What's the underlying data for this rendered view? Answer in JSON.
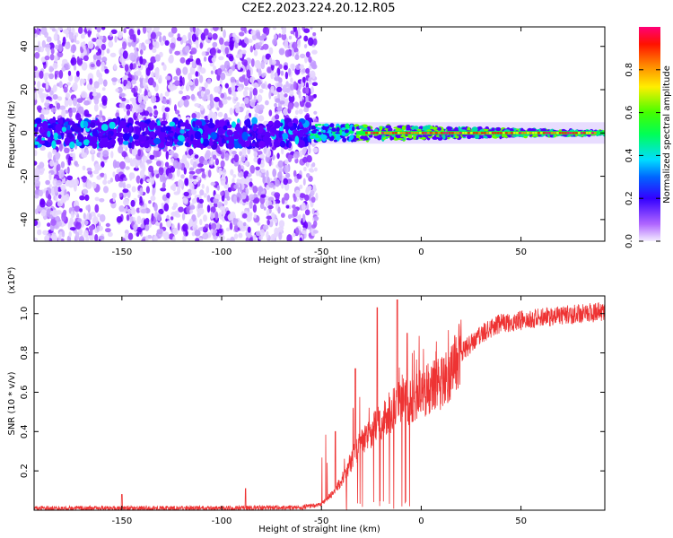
{
  "title": "C2E2.2023.224.20.12.R05",
  "chart_data": [
    {
      "type": "heatmap",
      "xlabel": "Height of straight line (km)",
      "ylabel": "Frequency (Hz)",
      "xlim": [
        -194,
        92
      ],
      "ylim": [
        -50,
        49
      ],
      "xticks": [
        -150,
        -100,
        -50,
        0,
        50
      ],
      "yticks": [
        -40,
        -20,
        0,
        20,
        40
      ],
      "colorbar": {
        "label": "Normalized spectral amplitude",
        "range": [
          0,
          1
        ],
        "ticks": [
          0.0,
          0.2,
          0.4,
          0.6,
          0.8
        ],
        "colormap": [
          "#f0e6ff",
          "#9b30ff",
          "#3300ff",
          "#00ccff",
          "#00ff66",
          "#66ff00",
          "#ffee00",
          "#ff6600",
          "#ff0000",
          "#ff0077"
        ]
      },
      "features": {
        "noise_region_x": [
          -194,
          -55
        ],
        "narrowband_center_hz": 0,
        "narrowband_band_x": [
          -55,
          92
        ]
      }
    },
    {
      "type": "line",
      "xlabel": "Height of straight line (km)",
      "ylabel": "SNR (10 * v/v)",
      "scale_note": "(x10⁴)",
      "xlim": [
        -194,
        92
      ],
      "ylim": [
        0,
        1.09
      ],
      "xticks": [
        -150,
        -100,
        -50,
        0,
        50
      ],
      "yticks": [
        0.2,
        0.4,
        0.6,
        0.8,
        1.0
      ],
      "color": "#ee3333",
      "envelope_x": [
        -194,
        -100,
        -60,
        -50,
        -45,
        -40,
        -35,
        -30,
        -25,
        -20,
        -15,
        -10,
        -5,
        0,
        10,
        20,
        30,
        40,
        60,
        90
      ],
      "envelope_y": [
        0.01,
        0.01,
        0.015,
        0.03,
        0.08,
        0.15,
        0.25,
        0.35,
        0.4,
        0.45,
        0.5,
        0.55,
        0.55,
        0.6,
        0.65,
        0.8,
        0.9,
        0.95,
        0.98,
        1.01
      ],
      "spikes": [
        {
          "x": -150,
          "y": 0.08
        },
        {
          "x": -88,
          "y": 0.11
        },
        {
          "x": -43,
          "y": 0.4
        },
        {
          "x": -33,
          "y": 0.72
        },
        {
          "x": -22,
          "y": 1.03
        },
        {
          "x": -12,
          "y": 1.07
        },
        {
          "x": -7,
          "y": 0.9
        }
      ]
    }
  ]
}
